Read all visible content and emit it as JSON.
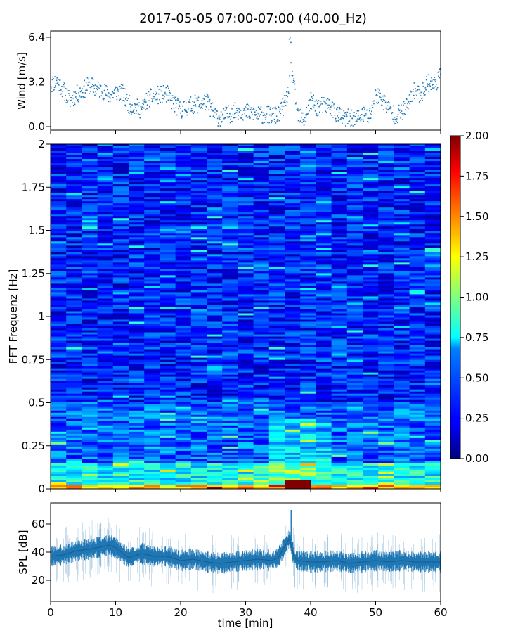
{
  "title": "2017-05-05 07:00-07:00 (40.00_Hz)",
  "chart_data": [
    {
      "type": "scatter",
      "ylabel": "Wind [m/s]",
      "ylim": [
        0.0,
        6.4
      ],
      "yticks": [
        "0.0",
        "3.2",
        "6.4"
      ],
      "xlim": [
        0,
        60
      ],
      "color": "#1f77b4",
      "x": [
        0,
        1,
        2,
        3,
        4,
        5,
        6,
        7,
        8,
        9,
        10,
        11,
        12,
        13,
        14,
        15,
        16,
        17,
        18,
        19,
        20,
        21,
        22,
        23,
        24,
        25,
        26,
        27,
        28,
        29,
        30,
        31,
        32,
        33,
        34,
        35,
        36,
        36.5,
        37,
        38,
        39,
        40,
        41,
        42,
        43,
        44,
        45,
        46,
        47,
        48,
        49,
        50,
        51,
        52,
        53,
        54,
        55,
        56,
        57,
        58,
        59,
        60
      ],
      "y": [
        3.0,
        3.3,
        2.6,
        1.9,
        2.3,
        2.6,
        3.0,
        2.7,
        2.6,
        2.2,
        2.5,
        2.4,
        1.6,
        1.4,
        1.2,
        2.0,
        2.2,
        2.3,
        2.3,
        1.6,
        1.2,
        1.4,
        1.6,
        1.6,
        1.8,
        1.0,
        0.6,
        0.8,
        1.0,
        1.2,
        1.0,
        1.0,
        0.8,
        0.9,
        0.8,
        0.8,
        1.6,
        2.3,
        4.6,
        0.8,
        0.5,
        1.8,
        1.4,
        1.5,
        1.5,
        0.9,
        0.6,
        0.6,
        0.5,
        0.9,
        0.6,
        2.3,
        2.0,
        1.3,
        0.8,
        1.0,
        1.6,
        2.6,
        2.3,
        3.2,
        3.0,
        3.6
      ]
    },
    {
      "type": "heatmap",
      "ylabel": "FFT Frequenz [Hz]",
      "xlim": [
        0,
        60
      ],
      "ylim": [
        0,
        2
      ],
      "yticks": [
        "0",
        "0.25",
        "0.5",
        "0.75",
        "1",
        "1.25",
        "1.5",
        "1.75",
        "2"
      ],
      "colorbar": {
        "colormap": "jet",
        "range": [
          0.0,
          2.0
        ],
        "ticks": [
          "0.00",
          "0.25",
          "0.50",
          "0.75",
          "1.00",
          "1.25",
          "1.50",
          "1.75",
          "2.00"
        ]
      },
      "band_levels": [
        {
          "freq_range": [
            0.0,
            0.025
          ],
          "level": 1.4
        },
        {
          "freq_range": [
            0.025,
            0.15
          ],
          "level": 0.75
        },
        {
          "freq_range": [
            0.15,
            0.5
          ],
          "level": 0.45
        },
        {
          "freq_range": [
            0.5,
            2.0
          ],
          "level": 0.3
        }
      ],
      "events": [
        {
          "time_range": [
            36,
            40
          ],
          "freq_range": [
            0.0,
            0.05
          ],
          "level": 2.0
        }
      ]
    },
    {
      "type": "line",
      "ylabel": "SPL [dB]",
      "xlabel": "time [min]",
      "ylim": [
        5,
        75
      ],
      "yticks": [
        "20",
        "40",
        "60"
      ],
      "xlim": [
        0,
        60
      ],
      "xticks": [
        "0",
        "10",
        "20",
        "30",
        "40",
        "50",
        "60"
      ],
      "color": "#1f77b4",
      "x": [
        0,
        2,
        4,
        6,
        8,
        9,
        10,
        12,
        14,
        16,
        18,
        20,
        22,
        24,
        26,
        28,
        30,
        32,
        34,
        35,
        36,
        36.8,
        37,
        37.5,
        38,
        40,
        42,
        44,
        46,
        48,
        50,
        52,
        54,
        56,
        58,
        60
      ],
      "y": [
        37,
        38,
        41,
        42,
        44,
        45,
        43,
        36,
        39,
        37,
        37,
        34,
        35,
        33,
        32,
        33,
        34,
        35,
        34,
        36,
        44,
        50,
        45,
        36,
        34,
        33,
        33,
        34,
        32,
        33,
        34,
        33,
        34,
        33,
        33,
        33
      ],
      "band_halfwidth": 7
    }
  ]
}
